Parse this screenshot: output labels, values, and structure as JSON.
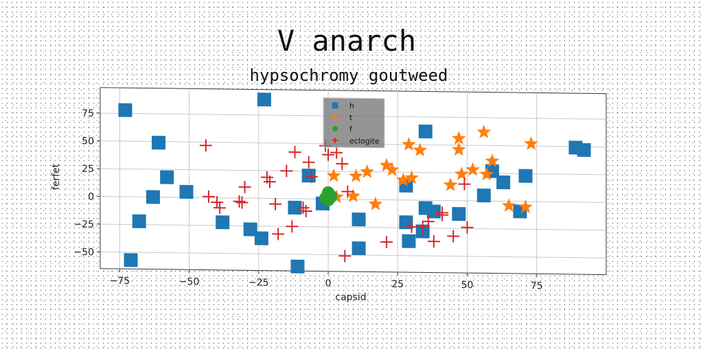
{
  "chart_data": {
    "type": "scatter",
    "title": "V anarch",
    "subtitle": "hypsochromy goutweed",
    "xlabel": "capsid",
    "ylabel": "ferfet",
    "xlim": [
      -82,
      100
    ],
    "ylim": [
      -65,
      98
    ],
    "xticks": [
      -75,
      -50,
      -25,
      0,
      25,
      50,
      75
    ],
    "yticks": [
      -50,
      -25,
      0,
      25,
      50,
      75
    ],
    "grid": true,
    "legend_position": "top-center",
    "series": [
      {
        "name": "h",
        "marker": "square",
        "color": "#1f77b4",
        "points": [
          [
            -73,
            78
          ],
          [
            -23,
            89
          ],
          [
            -61,
            49
          ],
          [
            -58,
            18
          ],
          [
            -51,
            5
          ],
          [
            -63,
            0
          ],
          [
            -68,
            -22
          ],
          [
            -28,
            -28
          ],
          [
            -24,
            -36
          ],
          [
            -38,
            -22
          ],
          [
            -71,
            -57
          ],
          [
            -11,
            -61
          ],
          [
            -12,
            -8
          ],
          [
            -7,
            21
          ],
          [
            -2,
            -4
          ],
          [
            11,
            -18
          ],
          [
            11,
            -44
          ],
          [
            28,
            13
          ],
          [
            28,
            -20
          ],
          [
            29,
            -37
          ],
          [
            35,
            62
          ],
          [
            35,
            -7
          ],
          [
            38,
            -10
          ],
          [
            34,
            -28
          ],
          [
            47,
            -12
          ],
          [
            56,
            5
          ],
          [
            59,
            27
          ],
          [
            63,
            17
          ],
          [
            69,
            -9
          ],
          [
            71,
            23
          ],
          [
            89,
            49
          ],
          [
            92,
            47
          ]
        ]
      },
      {
        "name": "t",
        "marker": "star",
        "color": "#ff7f0e",
        "points": [
          [
            29,
            50
          ],
          [
            33,
            45
          ],
          [
            21,
            31
          ],
          [
            23,
            27
          ],
          [
            14,
            25
          ],
          [
            10,
            21
          ],
          [
            2,
            21
          ],
          [
            9,
            3
          ],
          [
            3,
            2
          ],
          [
            17,
            -4
          ],
          [
            27,
            18
          ],
          [
            30,
            20
          ],
          [
            44,
            14
          ],
          [
            48,
            24
          ],
          [
            52,
            28
          ],
          [
            57,
            24
          ],
          [
            47,
            56
          ],
          [
            47,
            46
          ],
          [
            56,
            62
          ],
          [
            59,
            36
          ],
          [
            65,
            -4
          ],
          [
            71,
            -5
          ],
          [
            73,
            52
          ]
        ]
      },
      {
        "name": "f",
        "marker": "circle",
        "color": "#2ca02c",
        "points": [
          [
            0,
            4
          ],
          [
            1,
            2
          ],
          [
            -1,
            1
          ],
          [
            0,
            -1
          ],
          [
            1,
            3
          ],
          [
            0,
            6
          ]
        ]
      },
      {
        "name": "eclogite",
        "marker": "plus",
        "color": "#d62728",
        "points": [
          [
            -44,
            47
          ],
          [
            -43,
            1
          ],
          [
            -40,
            -4
          ],
          [
            -39,
            -9
          ],
          [
            -32,
            -3
          ],
          [
            -31,
            -4
          ],
          [
            -30,
            10
          ],
          [
            -22,
            19
          ],
          [
            -21,
            15
          ],
          [
            -19,
            -5
          ],
          [
            -18,
            -32
          ],
          [
            -15,
            25
          ],
          [
            -13,
            -25
          ],
          [
            -12,
            42
          ],
          [
            -9,
            -8
          ],
          [
            -8,
            -11
          ],
          [
            -7,
            33
          ],
          [
            -6,
            20
          ],
          [
            -1,
            48
          ],
          [
            0,
            40
          ],
          [
            3,
            42
          ],
          [
            5,
            32
          ],
          [
            7,
            7
          ],
          [
            6,
            -51
          ],
          [
            21,
            -38
          ],
          [
            30,
            -24
          ],
          [
            34,
            -24
          ],
          [
            36,
            -19
          ],
          [
            38,
            -37
          ],
          [
            45,
            -32
          ],
          [
            41,
            -11
          ],
          [
            41,
            -13
          ],
          [
            49,
            15
          ],
          [
            50,
            -24
          ]
        ]
      }
    ]
  }
}
